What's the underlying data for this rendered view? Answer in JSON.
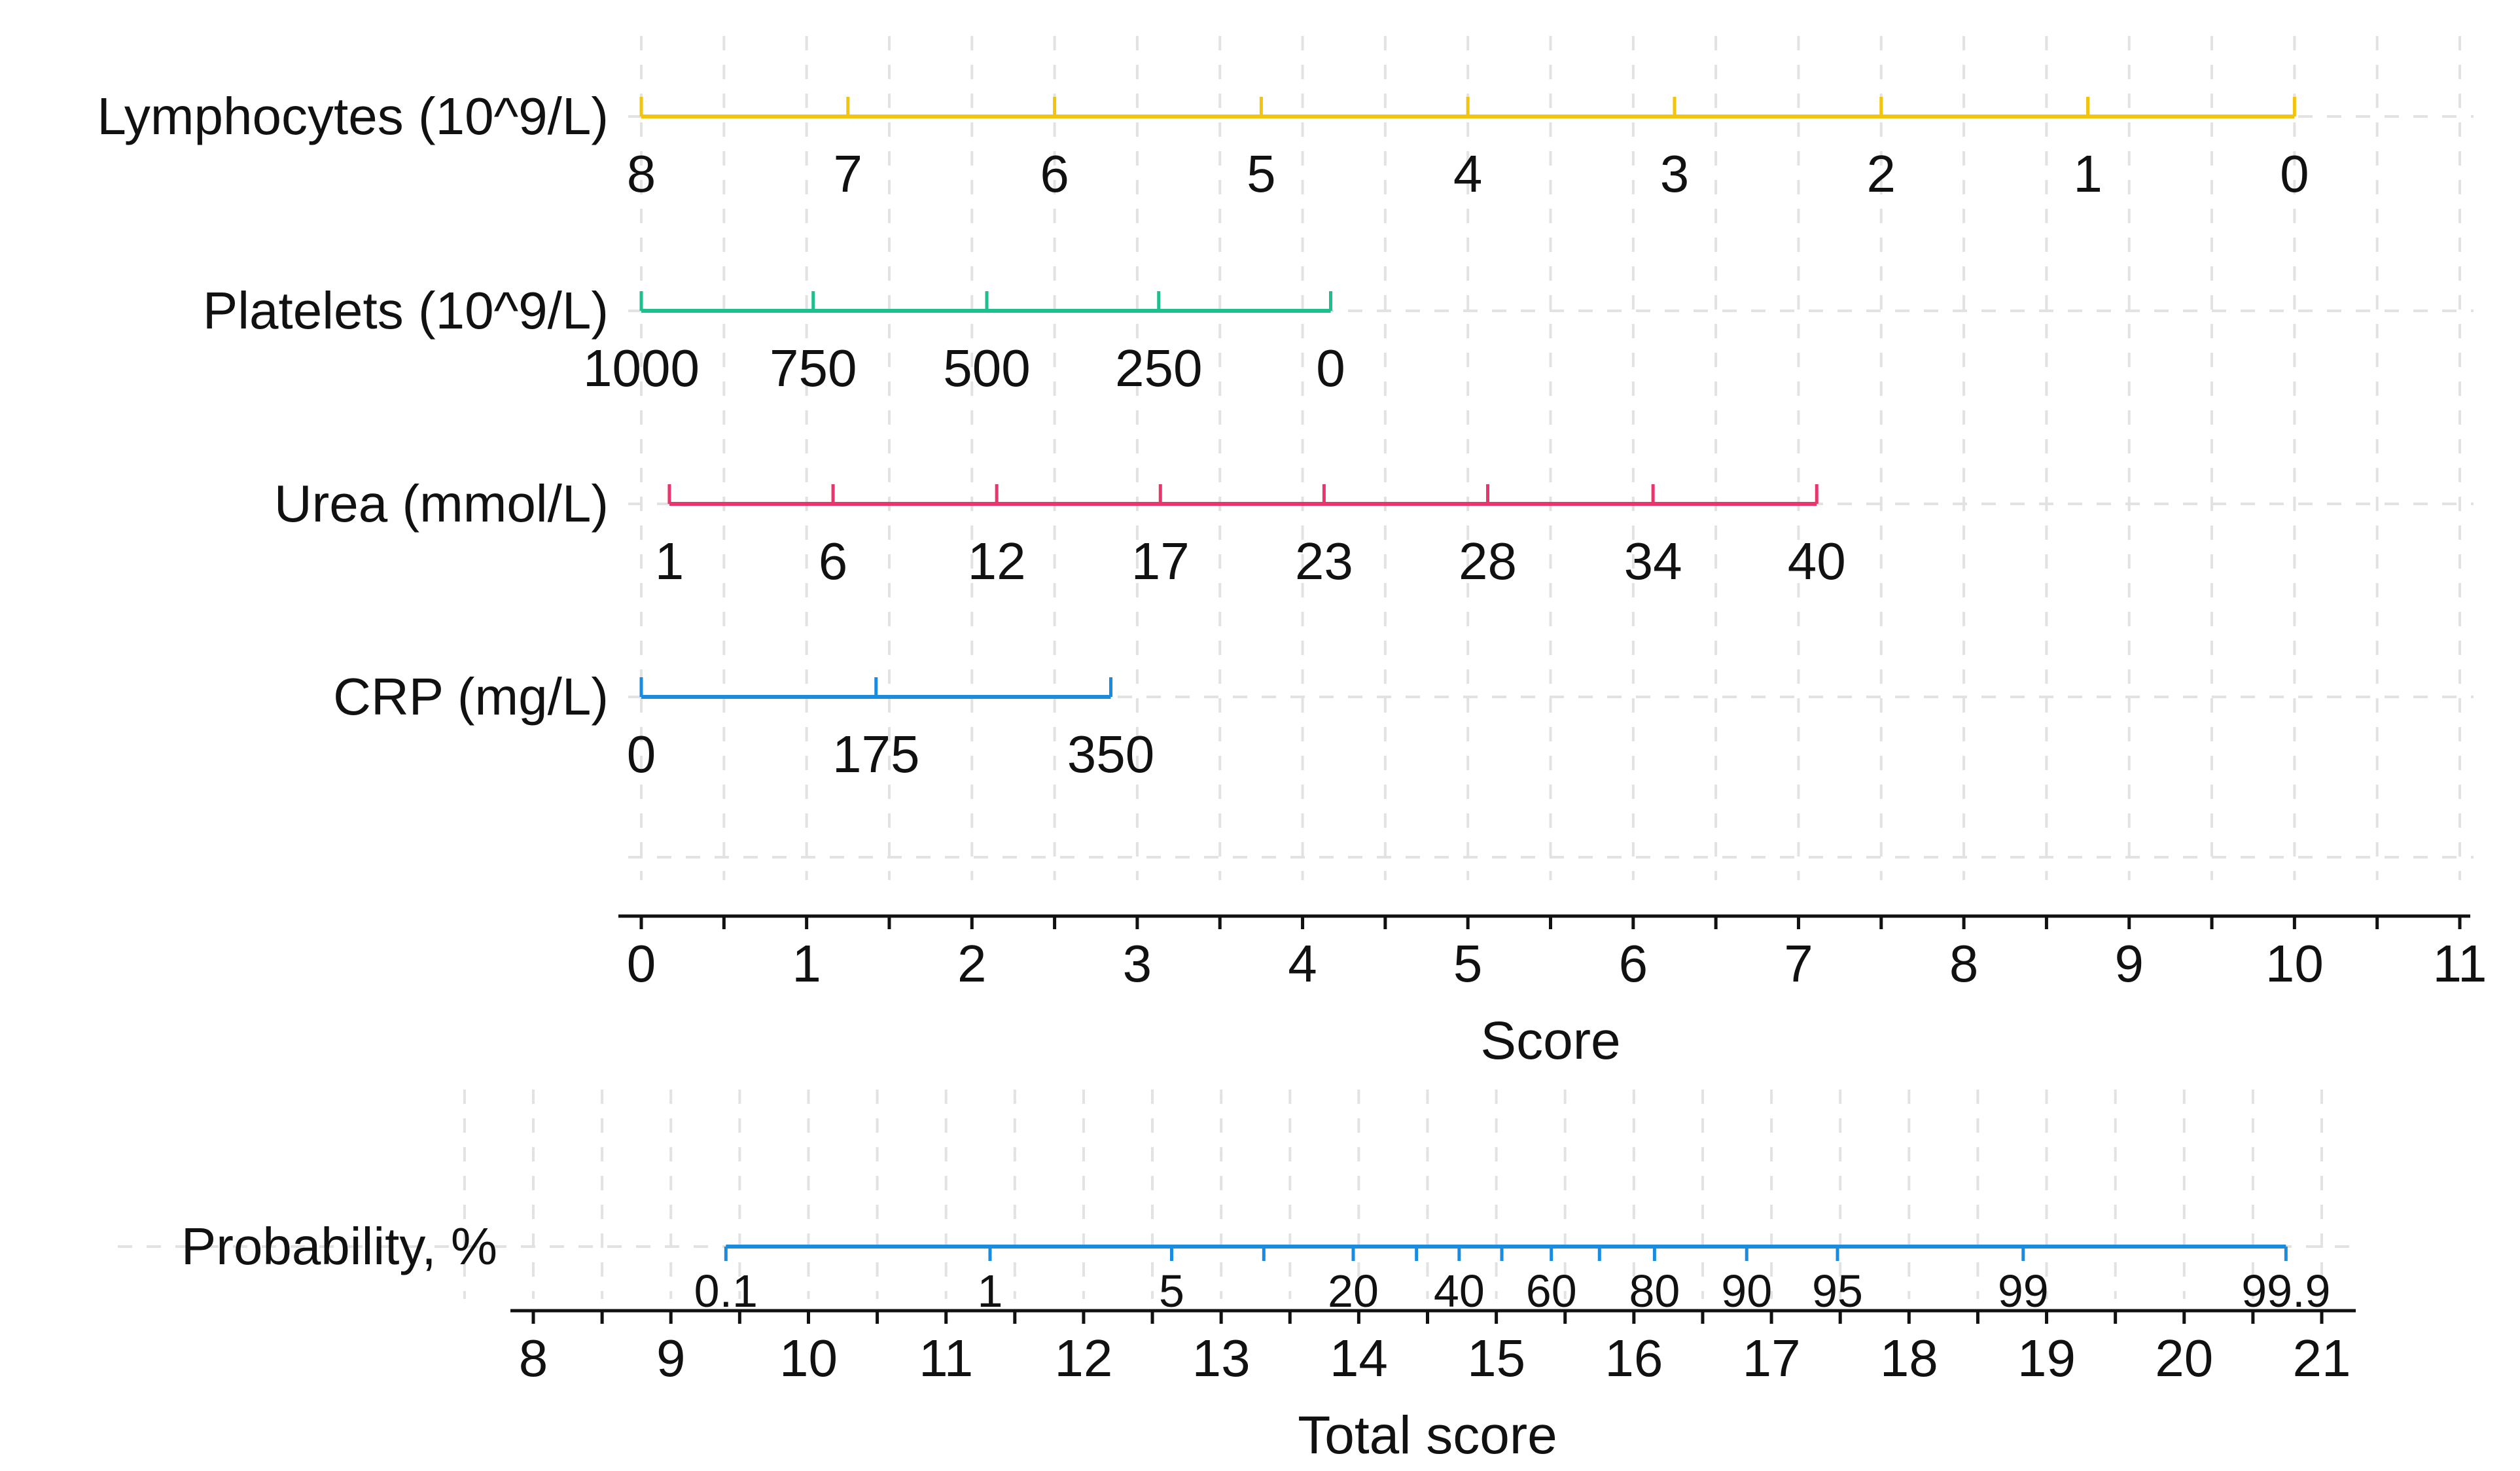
{
  "chart_data": {
    "type": "nomogram",
    "grid": true,
    "variables": [
      {
        "label": "Lymphocytes (10^9/L)",
        "color": "#F2C40D",
        "ticks": [
          {
            "label": "8",
            "score": 0.0
          },
          {
            "label": "7",
            "score": 1.25
          },
          {
            "label": "6",
            "score": 2.5
          },
          {
            "label": "5",
            "score": 3.75
          },
          {
            "label": "4",
            "score": 5.0
          },
          {
            "label": "3",
            "score": 6.25
          },
          {
            "label": "2",
            "score": 7.5
          },
          {
            "label": "1",
            "score": 8.75
          },
          {
            "label": "0",
            "score": 10.0
          }
        ]
      },
      {
        "label": "Platelets (10^9/L)",
        "color": "#1DBF8E",
        "ticks": [
          {
            "label": "1000",
            "score": 0.0
          },
          {
            "label": "750",
            "score": 1.04
          },
          {
            "label": "500",
            "score": 2.09
          },
          {
            "label": "250",
            "score": 3.13
          },
          {
            "label": "0",
            "score": 4.17
          }
        ]
      },
      {
        "label": "Urea (mmol/L)",
        "color": "#E8356D",
        "ticks": [
          {
            "label": "1",
            "score": 0.17
          },
          {
            "label": "6",
            "score": 1.16
          },
          {
            "label": "12",
            "score": 2.15
          },
          {
            "label": "17",
            "score": 3.14
          },
          {
            "label": "23",
            "score": 4.13
          },
          {
            "label": "28",
            "score": 5.12
          },
          {
            "label": "34",
            "score": 6.12
          },
          {
            "label": "40",
            "score": 7.11
          }
        ]
      },
      {
        "label": "CRP (mg/L)",
        "color": "#1A8CE0",
        "ticks": [
          {
            "label": "0",
            "score": 0.0
          },
          {
            "label": "175",
            "score": 1.42
          },
          {
            "label": "350",
            "score": 2.84
          }
        ]
      }
    ],
    "score_axis": {
      "title": "Score",
      "range": [
        0,
        11
      ],
      "tick_labels": [
        "0",
        "1",
        "2",
        "3",
        "4",
        "5",
        "6",
        "7",
        "8",
        "9",
        "10",
        "11"
      ]
    },
    "probability": {
      "label": "Probability, %",
      "color": "#1A8CE0",
      "ticks": [
        {
          "label": "0.1",
          "total": 9.4
        },
        {
          "label": "1",
          "total": 11.32
        },
        {
          "label": "5",
          "total": 12.64
        },
        {
          "label": "",
          "total": 13.31
        },
        {
          "label": "20",
          "total": 13.96
        },
        {
          "label": "",
          "total": 14.42
        },
        {
          "label": "40",
          "total": 14.73
        },
        {
          "label": "",
          "total": 15.04
        },
        {
          "label": "60",
          "total": 15.4
        },
        {
          "label": "",
          "total": 15.75
        },
        {
          "label": "80",
          "total": 16.15
        },
        {
          "label": "90",
          "total": 16.82
        },
        {
          "label": "95",
          "total": 17.48
        },
        {
          "label": "99",
          "total": 18.83
        },
        {
          "label": "99.9",
          "total": 20.74
        }
      ]
    },
    "total_axis": {
      "title": "Total score",
      "range": [
        8,
        21
      ],
      "tick_labels": [
        "8",
        "9",
        "10",
        "11",
        "12",
        "13",
        "14",
        "15",
        "16",
        "17",
        "18",
        "19",
        "20",
        "21"
      ]
    }
  }
}
